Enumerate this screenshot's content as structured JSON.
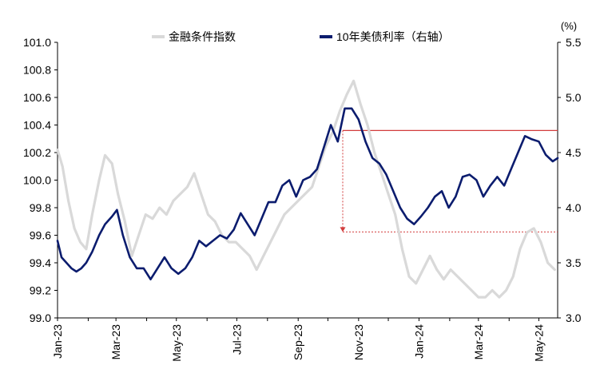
{
  "chart_data": {
    "type": "line",
    "title": "",
    "y_left": {
      "label": "",
      "lim": [
        99.0,
        101.0
      ],
      "ticks": [
        "99.0",
        "99.2",
        "99.4",
        "99.6",
        "99.8",
        "100.0",
        "100.2",
        "100.4",
        "100.6",
        "100.8",
        "101.0"
      ]
    },
    "y_right": {
      "unit_label": "(%)",
      "lim": [
        3.0,
        5.5
      ],
      "ticks": [
        "3.0",
        "3.5",
        "4.0",
        "4.5",
        "5.0",
        "5.5"
      ]
    },
    "x_ticks": [
      "Jan-23",
      "Mar-23",
      "May-23",
      "Jul-23",
      "Sep-23",
      "Nov-23",
      "Jan-24",
      "Mar-24",
      "May-24"
    ],
    "x_range": [
      "2023-01-01",
      "2024-05-20"
    ],
    "legend": {
      "placement": "top"
    },
    "series": [
      {
        "name": "金融条件指数",
        "axis": "left",
        "color": "#d9d9d9",
        "points": [
          [
            "2023-01-01",
            100.22
          ],
          [
            "2023-01-06",
            100.1
          ],
          [
            "2023-01-12",
            99.85
          ],
          [
            "2023-01-18",
            99.65
          ],
          [
            "2023-01-24",
            99.55
          ],
          [
            "2023-01-30",
            99.5
          ],
          [
            "2023-02-05",
            99.75
          ],
          [
            "2023-02-12",
            100.0
          ],
          [
            "2023-02-18",
            100.18
          ],
          [
            "2023-02-25",
            100.12
          ],
          [
            "2023-03-03",
            99.9
          ],
          [
            "2023-03-10",
            99.7
          ],
          [
            "2023-03-17",
            99.45
          ],
          [
            "2023-03-24",
            99.6
          ],
          [
            "2023-03-31",
            99.75
          ],
          [
            "2023-04-07",
            99.72
          ],
          [
            "2023-04-14",
            99.8
          ],
          [
            "2023-04-21",
            99.75
          ],
          [
            "2023-04-28",
            99.85
          ],
          [
            "2023-05-05",
            99.9
          ],
          [
            "2023-05-12",
            99.95
          ],
          [
            "2023-05-19",
            100.05
          ],
          [
            "2023-05-26",
            99.9
          ],
          [
            "2023-06-02",
            99.75
          ],
          [
            "2023-06-09",
            99.7
          ],
          [
            "2023-06-16",
            99.6
          ],
          [
            "2023-06-23",
            99.55
          ],
          [
            "2023-06-30",
            99.55
          ],
          [
            "2023-07-07",
            99.5
          ],
          [
            "2023-07-14",
            99.45
          ],
          [
            "2023-07-21",
            99.35
          ],
          [
            "2023-07-28",
            99.45
          ],
          [
            "2023-08-04",
            99.55
          ],
          [
            "2023-08-11",
            99.65
          ],
          [
            "2023-08-18",
            99.75
          ],
          [
            "2023-08-25",
            99.8
          ],
          [
            "2023-09-01",
            99.85
          ],
          [
            "2023-09-08",
            99.9
          ],
          [
            "2023-09-15",
            99.95
          ],
          [
            "2023-09-22",
            100.1
          ],
          [
            "2023-09-29",
            100.25
          ],
          [
            "2023-10-06",
            100.35
          ],
          [
            "2023-10-13",
            100.5
          ],
          [
            "2023-10-20",
            100.62
          ],
          [
            "2023-10-27",
            100.72
          ],
          [
            "2023-11-03",
            100.55
          ],
          [
            "2023-11-10",
            100.4
          ],
          [
            "2023-11-17",
            100.2
          ],
          [
            "2023-11-24",
            100.05
          ],
          [
            "2023-12-01",
            99.9
          ],
          [
            "2023-12-08",
            99.75
          ],
          [
            "2023-12-15",
            99.5
          ],
          [
            "2023-12-22",
            99.3
          ],
          [
            "2023-12-29",
            99.25
          ],
          [
            "2024-01-05",
            99.35
          ],
          [
            "2024-01-12",
            99.45
          ],
          [
            "2024-01-19",
            99.35
          ],
          [
            "2024-01-26",
            99.28
          ],
          [
            "2024-02-02",
            99.35
          ],
          [
            "2024-02-09",
            99.3
          ],
          [
            "2024-02-16",
            99.25
          ],
          [
            "2024-02-23",
            99.2
          ],
          [
            "2024-03-01",
            99.15
          ],
          [
            "2024-03-08",
            99.15
          ],
          [
            "2024-03-15",
            99.2
          ],
          [
            "2024-03-22",
            99.15
          ],
          [
            "2024-03-29",
            99.2
          ],
          [
            "2024-04-05",
            99.3
          ],
          [
            "2024-04-12",
            99.5
          ],
          [
            "2024-04-19",
            99.62
          ],
          [
            "2024-04-26",
            99.65
          ],
          [
            "2024-05-03",
            99.55
          ],
          [
            "2024-05-10",
            99.4
          ],
          [
            "2024-05-17",
            99.35
          ]
        ]
      },
      {
        "name": "10年美债利率（右轴）",
        "axis": "right",
        "color": "#0b1c6e",
        "points": [
          [
            "2023-01-01",
            3.7
          ],
          [
            "2023-01-05",
            3.55
          ],
          [
            "2023-01-10",
            3.5
          ],
          [
            "2023-01-15",
            3.45
          ],
          [
            "2023-01-20",
            3.42
          ],
          [
            "2023-01-25",
            3.45
          ],
          [
            "2023-01-30",
            3.5
          ],
          [
            "2023-02-05",
            3.6
          ],
          [
            "2023-02-12",
            3.75
          ],
          [
            "2023-02-18",
            3.85
          ],
          [
            "2023-02-25",
            3.92
          ],
          [
            "2023-03-02",
            3.98
          ],
          [
            "2023-03-08",
            3.75
          ],
          [
            "2023-03-15",
            3.55
          ],
          [
            "2023-03-22",
            3.45
          ],
          [
            "2023-03-29",
            3.45
          ],
          [
            "2023-04-05",
            3.35
          ],
          [
            "2023-04-12",
            3.45
          ],
          [
            "2023-04-19",
            3.55
          ],
          [
            "2023-04-26",
            3.45
          ],
          [
            "2023-05-03",
            3.4
          ],
          [
            "2023-05-10",
            3.45
          ],
          [
            "2023-05-17",
            3.55
          ],
          [
            "2023-05-24",
            3.7
          ],
          [
            "2023-05-31",
            3.65
          ],
          [
            "2023-06-07",
            3.7
          ],
          [
            "2023-06-14",
            3.75
          ],
          [
            "2023-06-21",
            3.72
          ],
          [
            "2023-06-28",
            3.8
          ],
          [
            "2023-07-05",
            3.95
          ],
          [
            "2023-07-12",
            3.85
          ],
          [
            "2023-07-19",
            3.75
          ],
          [
            "2023-07-26",
            3.9
          ],
          [
            "2023-08-02",
            4.05
          ],
          [
            "2023-08-09",
            4.05
          ],
          [
            "2023-08-16",
            4.2
          ],
          [
            "2023-08-23",
            4.25
          ],
          [
            "2023-08-30",
            4.1
          ],
          [
            "2023-09-06",
            4.25
          ],
          [
            "2023-09-13",
            4.28
          ],
          [
            "2023-09-20",
            4.35
          ],
          [
            "2023-09-27",
            4.55
          ],
          [
            "2023-10-04",
            4.75
          ],
          [
            "2023-10-11",
            4.6
          ],
          [
            "2023-10-18",
            4.9
          ],
          [
            "2023-10-25",
            4.9
          ],
          [
            "2023-11-01",
            4.8
          ],
          [
            "2023-11-08",
            4.6
          ],
          [
            "2023-11-15",
            4.45
          ],
          [
            "2023-11-22",
            4.4
          ],
          [
            "2023-11-29",
            4.3
          ],
          [
            "2023-12-06",
            4.15
          ],
          [
            "2023-12-13",
            4.0
          ],
          [
            "2023-12-20",
            3.9
          ],
          [
            "2023-12-27",
            3.85
          ],
          [
            "2024-01-03",
            3.92
          ],
          [
            "2024-01-10",
            4.0
          ],
          [
            "2024-01-17",
            4.1
          ],
          [
            "2024-01-24",
            4.15
          ],
          [
            "2024-01-31",
            4.0
          ],
          [
            "2024-02-07",
            4.1
          ],
          [
            "2024-02-14",
            4.28
          ],
          [
            "2024-02-21",
            4.3
          ],
          [
            "2024-02-28",
            4.25
          ],
          [
            "2024-03-06",
            4.1
          ],
          [
            "2024-03-13",
            4.2
          ],
          [
            "2024-03-20",
            4.28
          ],
          [
            "2024-03-27",
            4.2
          ],
          [
            "2024-04-03",
            4.35
          ],
          [
            "2024-04-10",
            4.5
          ],
          [
            "2024-04-17",
            4.65
          ],
          [
            "2024-04-24",
            4.62
          ],
          [
            "2024-05-01",
            4.6
          ],
          [
            "2024-05-08",
            4.48
          ],
          [
            "2024-05-15",
            4.42
          ],
          [
            "2024-05-20",
            4.45
          ]
        ]
      }
    ],
    "annotations": {
      "color": "#d23c3c",
      "upper_level": 4.7,
      "lower_level": 3.78,
      "from_date": "2023-10-16",
      "to_date": "2024-05-20"
    }
  }
}
